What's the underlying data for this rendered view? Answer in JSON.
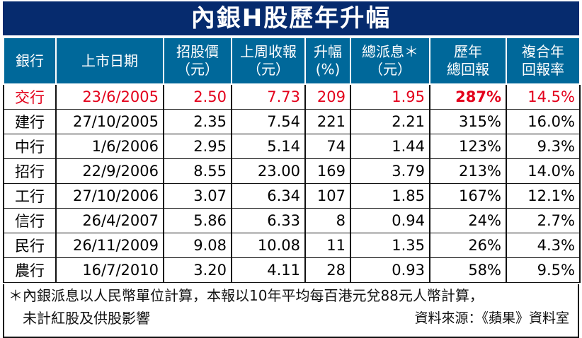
{
  "title": "內銀H股歷年升幅",
  "headers": [
    [
      "銀行"
    ],
    [
      "上市日期"
    ],
    [
      "招股價",
      "（元）"
    ],
    [
      "上周收報",
      "（元）"
    ],
    [
      "升幅",
      "(%)"
    ],
    [
      "總派息＊",
      "（元）"
    ],
    [
      "歷年",
      "總回報"
    ],
    [
      "複合年",
      "回報率"
    ]
  ],
  "rows": [
    {
      "bank": "交行",
      "listing_date": "23/6/2005",
      "ipo_price": "2.50",
      "last_close": "7.73",
      "rise_pct": "209",
      "total_dividend": "1.95",
      "total_return": "287%",
      "cagr": "14.5%"
    },
    {
      "bank": "建行",
      "listing_date": "27/10/2005",
      "ipo_price": "2.35",
      "last_close": "7.54",
      "rise_pct": "221",
      "total_dividend": "2.21",
      "total_return": "315%",
      "cagr": "16.0%"
    },
    {
      "bank": "中行",
      "listing_date": "1/6/2006",
      "ipo_price": "2.95",
      "last_close": "5.14",
      "rise_pct": "74",
      "total_dividend": "1.44",
      "total_return": "123%",
      "cagr": "9.3%"
    },
    {
      "bank": "招行",
      "listing_date": "22/9/2006",
      "ipo_price": "8.55",
      "last_close": "23.00",
      "rise_pct": "169",
      "total_dividend": "3.79",
      "total_return": "213%",
      "cagr": "14.0%"
    },
    {
      "bank": "工行",
      "listing_date": "27/10/2006",
      "ipo_price": "3.07",
      "last_close": "6.34",
      "rise_pct": "107",
      "total_dividend": "1.85",
      "total_return": "167%",
      "cagr": "12.1%"
    },
    {
      "bank": "信行",
      "listing_date": "26/4/2007",
      "ipo_price": "5.86",
      "last_close": "6.33",
      "rise_pct": "8",
      "total_dividend": "0.94",
      "total_return": "24%",
      "cagr": "2.7%"
    },
    {
      "bank": "民行",
      "listing_date": "26/11/2009",
      "ipo_price": "9.08",
      "last_close": "10.08",
      "rise_pct": "11",
      "total_dividend": "1.35",
      "total_return": "26%",
      "cagr": "4.3%"
    },
    {
      "bank": "農行",
      "listing_date": "16/7/2010",
      "ipo_price": "3.20",
      "last_close": "4.11",
      "rise_pct": "28",
      "total_dividend": "0.93",
      "total_return": "58%",
      "cagr": "9.5%"
    }
  ],
  "footnote_line1": "＊內銀派息以人民幣單位計算，本報以10年平均每百港元兌88元人幣計算，",
  "footnote_line2": "未計紅股及供股影響",
  "source": "資料來源：《蘋果》資料室",
  "colors": {
    "title_bg": "#062b6e",
    "header_bg": "#00689a",
    "highlight": "#e3001b"
  }
}
